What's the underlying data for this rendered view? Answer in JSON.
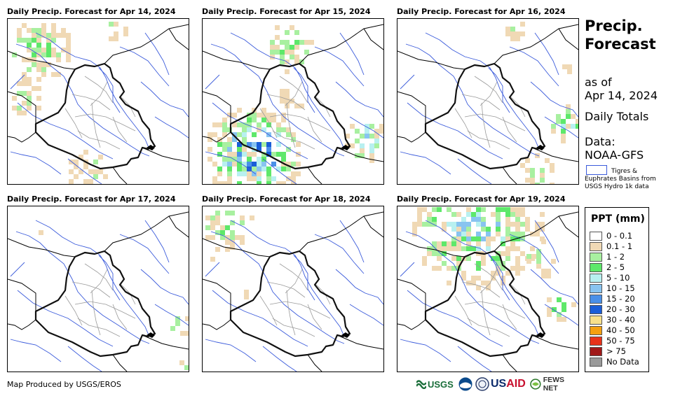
{
  "panels": [
    {
      "title": "Daily Precip. Forecast for Apr 14, 2024"
    },
    {
      "title": "Daily Precip. Forecast for Apr 15, 2024"
    },
    {
      "title": "Daily Precip. Forecast for Apr 16, 2024"
    },
    {
      "title": "Daily Precip. Forecast for Apr 17, 2024"
    },
    {
      "title": "Daily Precip. Forecast for Apr 18, 2024"
    },
    {
      "title": "Daily Precip. Forecast for Apr 19, 2024"
    }
  ],
  "sidebar": {
    "title_line1": "Precip.",
    "title_line2": "Forecast",
    "asof_line1": "as of",
    "asof_line2": "Apr 14, 2024",
    "daily": "Daily Totals",
    "data_line1": "Data:",
    "data_line2": "NOAA-GFS",
    "basin_line1": "Tigres &",
    "basin_line2": "Euphrates Basins from",
    "basin_line3": "USGS Hydro 1k data"
  },
  "legend": {
    "title": "PPT (mm)",
    "items": [
      {
        "label": "0 - 0.1",
        "color": "#ffffff"
      },
      {
        "label": "0.1 - 1",
        "color": "#f0d9b5"
      },
      {
        "label": "1 - 2",
        "color": "#a8f0a0"
      },
      {
        "label": "2 - 5",
        "color": "#5ee86a"
      },
      {
        "label": "5 - 10",
        "color": "#b8f0f0"
      },
      {
        "label": "10 - 15",
        "color": "#88c4f0"
      },
      {
        "label": "15 - 20",
        "color": "#4a90e8"
      },
      {
        "label": "20 - 30",
        "color": "#1a5ed8"
      },
      {
        "label": "30 - 40",
        "color": "#f8e08a"
      },
      {
        "label": "40 - 50",
        "color": "#f5a010"
      },
      {
        "label": "50 - 75",
        "color": "#e8321a"
      },
      {
        "label": "> 75",
        "color": "#a01818"
      },
      {
        "label": "No Data",
        "color": "#9a9a9a"
      }
    ]
  },
  "footer": {
    "credit": "Map Produced by USGS/EROS",
    "logos": [
      "USGS",
      "NOAA",
      "USAID",
      "FEWS NET"
    ]
  }
}
